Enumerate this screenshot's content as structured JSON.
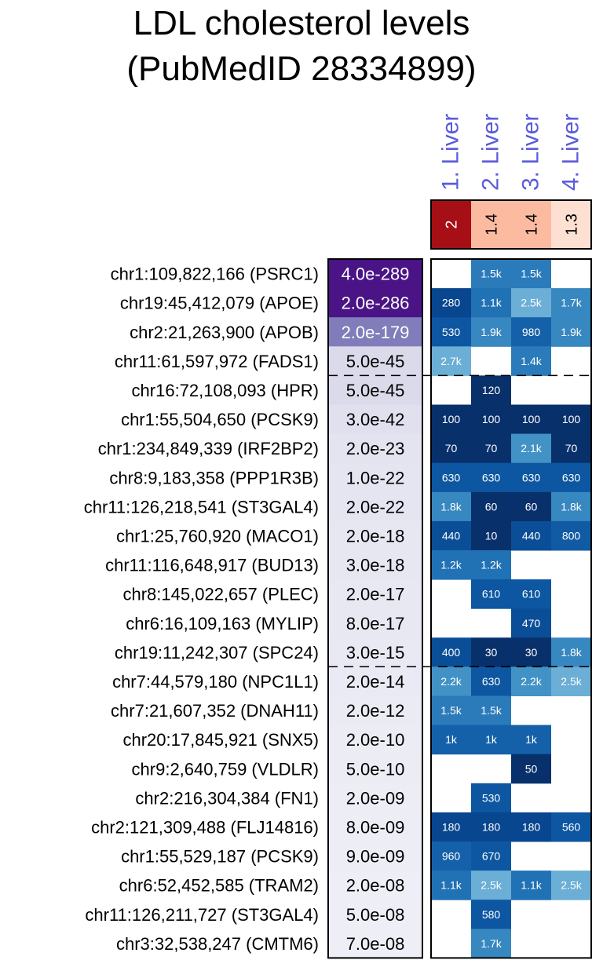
{
  "title": {
    "line1": "LDL cholesterol levels",
    "line2": "(PubMedID 28334899)"
  },
  "chart_data": {
    "type": "heatmap",
    "columns": [
      "1. Liver",
      "2. Liver",
      "3. Liver",
      "4. Liver"
    ],
    "column_scores": [
      "2",
      "1.4",
      "1.4",
      "1.3"
    ],
    "column_score_colors": [
      "#a50f15",
      "#fcbba1",
      "#fcbba1",
      "#fee0d2"
    ],
    "rows": [
      "chr1:109,822,166 (PSRC1)",
      "chr19:45,412,079 (APOE)",
      "chr2:21,263,900 (APOB)",
      "chr11:61,597,972 (FADS1)",
      "chr16:72,108,093 (HPR)",
      "chr1:55,504,650 (PCSK9)",
      "chr1:234,849,339 (IRF2BP2)",
      "chr8:9,183,358 (PPP1R3B)",
      "chr11:126,218,541 (ST3GAL4)",
      "chr1:25,760,920 (MACO1)",
      "chr11:116,648,917 (BUD13)",
      "chr8:145,022,657 (PLEC)",
      "chr6:16,109,163 (MYLIP)",
      "chr19:11,242,307 (SPC24)",
      "chr7:44,579,180 (NPC1L1)",
      "chr7:21,607,352 (DNAH11)",
      "chr20:17,845,921 (SNX5)",
      "chr9:2,640,759 (VLDLR)",
      "chr2:216,304,384 (FN1)",
      "chr2:121,309,488 (FLJ14816)",
      "chr1:55,529,187 (PCSK9)",
      "chr6:52,452,585 (TRAM2)",
      "chr11:126,211,727 (ST3GAL4)",
      "chr3:32,538,247 (CMTM6)"
    ],
    "pvalues": [
      "4.0e-289",
      "2.0e-286",
      "2.0e-179",
      "5.0e-45",
      "5.0e-45",
      "3.0e-42",
      "2.0e-23",
      "1.0e-22",
      "2.0e-22",
      "2.0e-18",
      "3.0e-18",
      "2.0e-17",
      "8.0e-17",
      "3.0e-15",
      "2.0e-14",
      "2.0e-12",
      "2.0e-10",
      "5.0e-10",
      "2.0e-09",
      "8.0e-09",
      "9.0e-09",
      "2.0e-08",
      "5.0e-08",
      "7.0e-08"
    ],
    "pvalue_colors": [
      "#4a1486",
      "#4a1486",
      "#807dba",
      "#dadaeb",
      "#dadaeb",
      "#e0e0ef",
      "#e4e4f1",
      "#e5e5f1",
      "#e5e5f1",
      "#e7e7f2",
      "#e7e7f2",
      "#e8e8f3",
      "#e8e8f3",
      "#e9e9f3",
      "#eaeaf4",
      "#ebebf4",
      "#ececf5",
      "#ececf5",
      "#ededf5",
      "#ededf5",
      "#ededf5",
      "#eeeef6",
      "#eeeef6",
      "#eeeef6"
    ],
    "cells": [
      [
        "",
        "1.5k",
        "1.5k",
        ""
      ],
      [
        "280",
        "1.1k",
        "2.5k",
        "1.7k"
      ],
      [
        "530",
        "1.9k",
        "980",
        "1.9k"
      ],
      [
        "2.7k",
        "",
        "1.4k",
        ""
      ],
      [
        "",
        "120",
        "",
        ""
      ],
      [
        "100",
        "100",
        "100",
        "100"
      ],
      [
        "70",
        "70",
        "2.1k",
        "70"
      ],
      [
        "630",
        "630",
        "630",
        "630"
      ],
      [
        "1.8k",
        "60",
        "60",
        "1.8k"
      ],
      [
        "440",
        "10",
        "440",
        "800"
      ],
      [
        "1.2k",
        "1.2k",
        "",
        ""
      ],
      [
        "",
        "610",
        "610",
        ""
      ],
      [
        "",
        "",
        "470",
        ""
      ],
      [
        "400",
        "30",
        "30",
        "1.8k"
      ],
      [
        "2.2k",
        "630",
        "2.2k",
        "2.5k"
      ],
      [
        "1.5k",
        "1.5k",
        "",
        ""
      ],
      [
        "1k",
        "1k",
        "1k",
        ""
      ],
      [
        "",
        "",
        "50",
        ""
      ],
      [
        "",
        "530",
        "",
        ""
      ],
      [
        "180",
        "180",
        "180",
        "560"
      ],
      [
        "960",
        "670",
        "",
        ""
      ],
      [
        "1.1k",
        "2.5k",
        "1.1k",
        "2.5k"
      ],
      [
        "",
        "580",
        "",
        ""
      ],
      [
        "",
        "1.7k",
        "",
        ""
      ]
    ],
    "cell_colors": {
      "10": "#08306b",
      "30": "#08306b",
      "50": "#08306b",
      "60": "#08306b",
      "70": "#08306b",
      "100": "#08306b",
      "120": "#08306b",
      "180": "#08468f",
      "280": "#08468f",
      "400": "#0b4e98",
      "440": "#0b4e98",
      "470": "#0b4e98",
      "530": "#0d56a1",
      "560": "#0d56a1",
      "580": "#0d56a1",
      "610": "#0d56a1",
      "630": "#0d56a1",
      "670": "#0d56a1",
      "800": "#105ba4",
      "960": "#1561a9",
      "980": "#1561a9",
      "1k": "#1561a9",
      "1.1k": "#2171b5",
      "1.2k": "#2171b5",
      "1.4k": "#2b7bba",
      "1.5k": "#2b7bba",
      "1.7k": "#3787c0",
      "1.8k": "#3787c0",
      "1.9k": "#3787c0",
      "2.1k": "#4292c6",
      "2.2k": "#4292c6",
      "2.5k": "#6baed6",
      "2.7k": "#6baed6"
    },
    "separator_after_rows": [
      3,
      13
    ],
    "column_label_color": "#5b5bdc"
  }
}
